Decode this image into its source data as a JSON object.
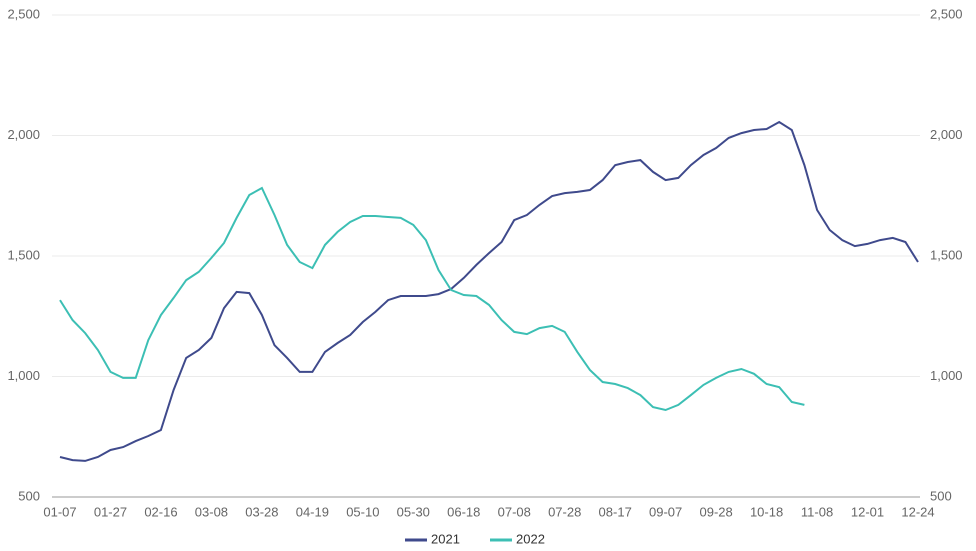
{
  "chart_data": {
    "type": "line",
    "categories": [
      "01-07",
      null,
      null,
      null,
      "01-27",
      null,
      null,
      null,
      "02-16",
      null,
      null,
      null,
      "03-08",
      null,
      null,
      null,
      "03-28",
      null,
      null,
      null,
      "04-19",
      null,
      null,
      null,
      "05-10",
      null,
      null,
      null,
      "05-30",
      null,
      null,
      null,
      "06-18",
      null,
      null,
      null,
      "07-08",
      null,
      null,
      null,
      "07-28",
      null,
      null,
      null,
      "08-17",
      null,
      null,
      null,
      "09-07",
      null,
      null,
      null,
      "09-28",
      null,
      null,
      null,
      "10-18",
      null,
      null,
      null,
      "11-08",
      null,
      null,
      null,
      "12-01",
      null,
      null,
      null,
      "12-24"
    ],
    "series": [
      {
        "name": "2021",
        "color": "#3f4a8c",
        "values": [
          666,
          653,
          650,
          666,
          695,
          707,
          732,
          753,
          778,
          944,
          1077,
          1110,
          1160,
          1284,
          1351,
          1346,
          1255,
          1130,
          1077,
          1019,
          1019,
          1102,
          1139,
          1172,
          1226,
          1268,
          1317,
          1334,
          1334,
          1334,
          1342,
          1363,
          1409,
          1463,
          1512,
          1558,
          1649,
          1670,
          1712,
          1749,
          1761,
          1766,
          1774,
          1815,
          1877,
          1890,
          1898,
          1849,
          1815,
          1824,
          1877,
          1919,
          1948,
          1990,
          2010,
          2023,
          2027,
          2056,
          2023,
          1877,
          1691,
          1608,
          1566,
          1541,
          1550,
          1566,
          1575,
          1558,
          1475
        ]
      },
      {
        "name": "2022",
        "color": "#3cbfb4",
        "values": [
          1317,
          1234,
          1180,
          1110,
          1019,
          994,
          994,
          1151,
          1255,
          1326,
          1400,
          1434,
          1492,
          1554,
          1658,
          1753,
          1782,
          1670,
          1546,
          1475,
          1450,
          1546,
          1600,
          1641,
          1666,
          1666,
          1662,
          1658,
          1629,
          1566,
          1442,
          1359,
          1338,
          1334,
          1297,
          1234,
          1185,
          1176,
          1201,
          1210,
          1185,
          1102,
          1027,
          977,
          969,
          952,
          923,
          873,
          861,
          882,
          923,
          965,
          994,
          1019,
          1031,
          1011,
          969,
          956,
          894,
          882,
          null,
          null,
          null,
          null,
          null,
          null,
          null,
          null,
          null
        ]
      }
    ],
    "ylim": [
      500,
      2500
    ],
    "yticks": [
      {
        "value": 500,
        "label": "500"
      },
      {
        "value": 1000,
        "label": "1,000"
      },
      {
        "value": 1500,
        "label": "1,500"
      },
      {
        "value": 2000,
        "label": "2,000"
      },
      {
        "value": 2500,
        "label": "2,500"
      }
    ],
    "y2lim": [
      500,
      2500
    ],
    "y2ticks": [
      {
        "value": 500,
        "label": "500"
      },
      {
        "value": 1000,
        "label": "1,000"
      },
      {
        "value": 1500,
        "label": "1,500"
      },
      {
        "value": 2000,
        "label": "2,000"
      },
      {
        "value": 2500,
        "label": "2,500"
      }
    ],
    "grid": true,
    "legend": "bottom"
  }
}
